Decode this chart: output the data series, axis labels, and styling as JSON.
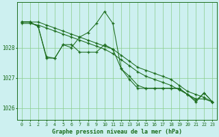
{
  "title": "Graphe pression niveau de la mer (hPa)",
  "background_color": "#cdf0f0",
  "grid_color": "#88cc88",
  "line_color": "#1a6b1a",
  "xlim": [
    -0.5,
    23.5
  ],
  "ylim": [
    1025.6,
    1029.5
  ],
  "yticks": [
    1026,
    1027,
    1028
  ],
  "xticks": [
    0,
    1,
    2,
    3,
    4,
    5,
    6,
    7,
    8,
    9,
    10,
    11,
    12,
    13,
    14,
    15,
    16,
    17,
    18,
    19,
    20,
    21,
    22,
    23
  ],
  "series": [
    {
      "x": [
        0,
        1,
        2,
        3,
        4,
        5,
        6,
        7,
        8,
        9,
        10,
        11,
        12,
        13,
        14,
        15,
        16,
        17,
        18,
        19,
        20,
        21,
        22,
        23
      ],
      "y": [
        1028.85,
        1028.85,
        1028.85,
        1028.75,
        1028.65,
        1028.55,
        1028.45,
        1028.35,
        1028.25,
        1028.15,
        1028.05,
        1027.95,
        1027.75,
        1027.55,
        1027.35,
        1027.25,
        1027.15,
        1027.05,
        1026.95,
        1026.75,
        1026.55,
        1026.45,
        1026.35,
        1026.2
      ]
    },
    {
      "x": [
        0,
        1,
        2,
        3,
        4,
        5,
        6,
        7,
        8,
        9,
        10,
        11,
        12,
        13,
        14,
        15,
        16,
        17,
        18,
        19,
        20,
        21,
        22,
        23
      ],
      "y": [
        1028.8,
        1028.8,
        1028.75,
        1028.65,
        1028.55,
        1028.45,
        1028.35,
        1028.25,
        1028.15,
        1028.05,
        1027.95,
        1027.8,
        1027.6,
        1027.4,
        1027.2,
        1027.05,
        1026.95,
        1026.85,
        1026.75,
        1026.6,
        1026.45,
        1026.3,
        1026.3,
        1026.2
      ]
    },
    {
      "x": [
        0,
        1,
        2,
        3,
        4,
        5,
        6,
        7,
        8,
        9,
        10,
        11,
        12,
        13,
        14,
        15,
        16,
        17,
        18,
        19,
        20,
        21,
        22,
        23
      ],
      "y": [
        1028.85,
        1028.85,
        1028.7,
        1027.7,
        1027.65,
        1028.1,
        1028.0,
        1028.35,
        1028.5,
        1028.8,
        1029.2,
        1028.8,
        1027.3,
        1027.05,
        1026.75,
        1026.65,
        1026.65,
        1026.65,
        1026.65,
        1026.65,
        1026.45,
        1026.25,
        1026.5,
        1026.2
      ]
    },
    {
      "x": [
        0,
        1,
        2,
        3,
        4,
        5,
        6,
        7,
        8,
        9,
        10,
        11,
        12,
        13,
        14,
        15,
        16,
        17,
        18,
        19,
        20,
        21,
        22,
        23
      ],
      "y": [
        1028.85,
        1028.85,
        1028.7,
        1027.65,
        1027.65,
        1028.1,
        1028.1,
        1027.85,
        1027.85,
        1027.85,
        1028.1,
        1027.95,
        1027.3,
        1026.95,
        1026.65,
        1026.65,
        1026.65,
        1026.65,
        1026.65,
        1026.65,
        1026.45,
        1026.2,
        1026.5,
        1026.2
      ]
    }
  ]
}
